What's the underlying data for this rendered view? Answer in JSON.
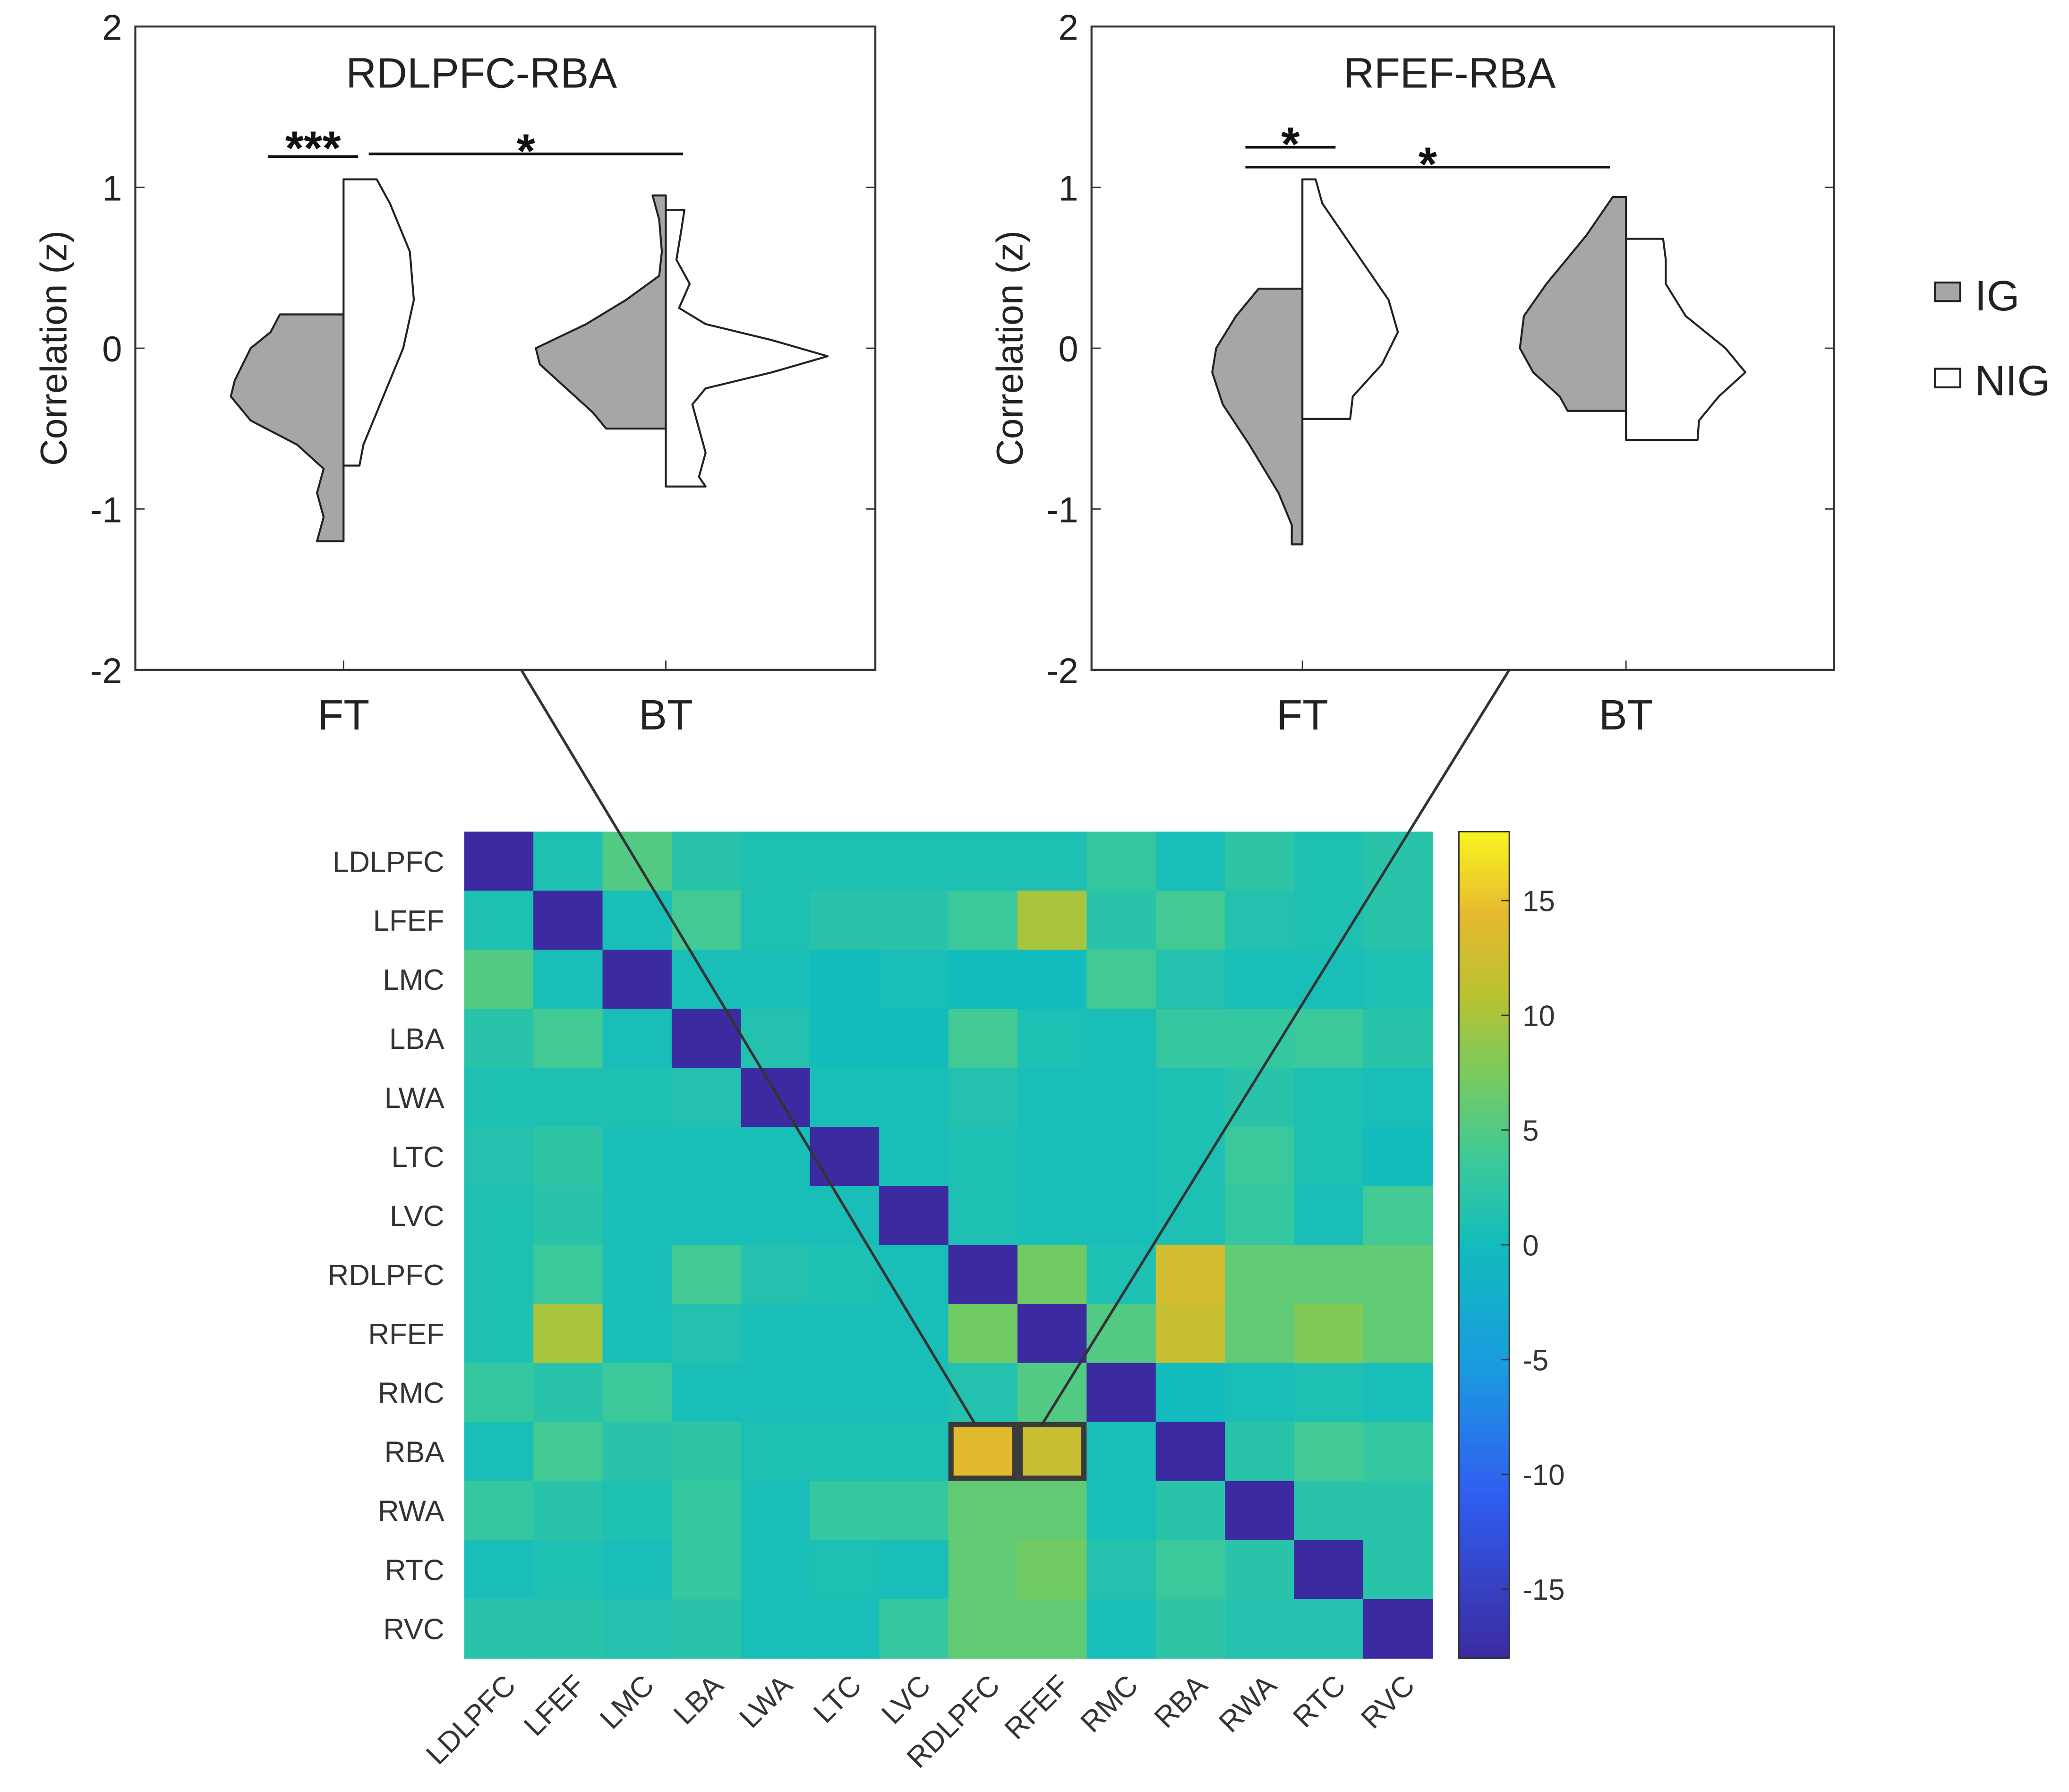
{
  "chart_data": [
    {
      "type": "violin",
      "title": "RDLPFC-RBA",
      "ylabel": "Correlation (z)",
      "ylim": [
        -2,
        2
      ],
      "yticks": [
        "2",
        "1",
        "0",
        "-1",
        "-2"
      ],
      "categories": [
        "FT",
        "BT"
      ],
      "significance": [
        {
          "label": "***",
          "between": "FT IG vs FT NIG"
        },
        {
          "label": "*",
          "between": "FT NIG vs BT NIG"
        }
      ],
      "series": [
        {
          "name": "IG",
          "side": "left",
          "violins": [
            [
              [
                0.21,
                0.48
              ],
              [
                0.1,
                0.55
              ],
              [
                0,
                0.7
              ],
              [
                -0.2,
                0.82
              ],
              [
                -0.3,
                0.85
              ],
              [
                -0.45,
                0.7
              ],
              [
                -0.6,
                0.35
              ],
              [
                -0.75,
                0.15
              ],
              [
                -0.9,
                0.2
              ],
              [
                -1.05,
                0.15
              ],
              [
                -1.2,
                0.2
              ]
            ],
            [
              [
                0.95,
                0.1
              ],
              [
                0.8,
                0.05
              ],
              [
                0.6,
                0.03
              ],
              [
                0.45,
                0.05
              ],
              [
                0.3,
                0.3
              ],
              [
                0.15,
                0.6
              ],
              [
                0,
                0.98
              ],
              [
                -0.1,
                0.95
              ],
              [
                -0.25,
                0.75
              ],
              [
                -0.4,
                0.55
              ],
              [
                -0.5,
                0.45
              ]
            ]
          ]
        },
        {
          "name": "NIG",
          "side": "right",
          "violins": [
            [
              [
                1.05,
                0.25
              ],
              [
                0.9,
                0.35
              ],
              [
                0.6,
                0.5
              ],
              [
                0.3,
                0.53
              ],
              [
                0,
                0.45
              ],
              [
                -0.3,
                0.3
              ],
              [
                -0.6,
                0.15
              ],
              [
                -0.73,
                0.12
              ]
            ],
            [
              [
                0.86,
                0.14
              ],
              [
                0.75,
                0.12
              ],
              [
                0.55,
                0.08
              ],
              [
                0.4,
                0.18
              ],
              [
                0.25,
                0.1
              ],
              [
                0.15,
                0.3
              ],
              [
                0.05,
                0.8
              ],
              [
                -0.05,
                1.22
              ],
              [
                -0.15,
                0.8
              ],
              [
                -0.25,
                0.3
              ],
              [
                -0.35,
                0.2
              ],
              [
                -0.5,
                0.25
              ],
              [
                -0.65,
                0.3
              ],
              [
                -0.8,
                0.25
              ],
              [
                -0.86,
                0.3
              ]
            ]
          ]
        }
      ]
    },
    {
      "type": "violin",
      "title": "RFEF-RBA",
      "ylabel": "Correlation (z)",
      "ylim": [
        -2,
        2
      ],
      "yticks": [
        "2",
        "1",
        "0",
        "-1",
        "-2"
      ],
      "categories": [
        "FT",
        "BT"
      ],
      "significance": [
        {
          "label": "*",
          "between": "FT IG vs FT NIG"
        },
        {
          "label": "*",
          "between": "FT IG vs BT IG"
        }
      ],
      "series": [
        {
          "name": "IG",
          "side": "left",
          "violins": [
            [
              [
                0.37,
                0.33
              ],
              [
                0.2,
                0.5
              ],
              [
                0,
                0.65
              ],
              [
                -0.15,
                0.68
              ],
              [
                -0.35,
                0.6
              ],
              [
                -0.6,
                0.4
              ],
              [
                -0.9,
                0.18
              ],
              [
                -1.1,
                0.08
              ],
              [
                -1.22,
                0.08
              ]
            ],
            [
              [
                0.94,
                0.1
              ],
              [
                0.7,
                0.3
              ],
              [
                0.4,
                0.6
              ],
              [
                0.2,
                0.77
              ],
              [
                0,
                0.8
              ],
              [
                -0.15,
                0.7
              ],
              [
                -0.3,
                0.5
              ],
              [
                -0.39,
                0.44
              ]
            ]
          ]
        },
        {
          "name": "NIG",
          "side": "right",
          "violins": [
            [
              [
                1.05,
                0.1
              ],
              [
                0.9,
                0.15
              ],
              [
                0.6,
                0.4
              ],
              [
                0.3,
                0.65
              ],
              [
                0.1,
                0.72
              ],
              [
                -0.1,
                0.6
              ],
              [
                -0.3,
                0.38
              ],
              [
                -0.44,
                0.36
              ]
            ],
            [
              [
                0.68,
                0.28
              ],
              [
                0.55,
                0.3
              ],
              [
                0.4,
                0.3
              ],
              [
                0.2,
                0.45
              ],
              [
                0,
                0.75
              ],
              [
                -0.15,
                0.9
              ],
              [
                -0.3,
                0.7
              ],
              [
                -0.45,
                0.55
              ],
              [
                -0.57,
                0.54
              ]
            ]
          ]
        }
      ]
    },
    {
      "type": "heatmap",
      "labels": [
        "LDLPFC",
        "LFEF",
        "LMC",
        "LBA",
        "LWA",
        "LTC",
        "LVC",
        "RDLPFC",
        "RFEF",
        "RMC",
        "RBA",
        "RWA",
        "RTC",
        "RVC"
      ],
      "clim": [
        -18,
        18
      ],
      "colorbar_ticks": [
        15,
        10,
        5,
        0,
        -5,
        -10,
        -15
      ],
      "highlighted": [
        [
          "RBA",
          "RDLPFC"
        ],
        [
          "RBA",
          "RFEF"
        ]
      ],
      "values": [
        [
          -18,
          1,
          5,
          2,
          1,
          1,
          1,
          1,
          1,
          3,
          0.5,
          2.5,
          1,
          2
        ],
        [
          1,
          -18,
          0.5,
          4,
          1,
          2,
          2,
          3.5,
          10,
          2,
          4,
          1.5,
          1,
          2
        ],
        [
          5,
          0.5,
          -18,
          0.5,
          0.5,
          0,
          0.5,
          0,
          0,
          4,
          1.5,
          0.5,
          0.5,
          1
        ],
        [
          2,
          4,
          0.5,
          -18,
          1.5,
          0,
          0,
          4,
          1,
          0.5,
          3,
          3,
          3.5,
          2
        ],
        [
          1,
          1,
          1,
          1.5,
          -18,
          0.5,
          0.5,
          1.5,
          0.5,
          0.5,
          1,
          2,
          1,
          0.5
        ],
        [
          1.5,
          2.5,
          0.5,
          0.5,
          0.5,
          -18,
          0.5,
          1,
          0.5,
          0.5,
          1,
          3.5,
          1,
          0
        ],
        [
          1,
          2,
          0.5,
          0.5,
          0.5,
          0.5,
          -18,
          1,
          0.5,
          0.5,
          1,
          3,
          0.5,
          4
        ],
        [
          1,
          3.5,
          0.5,
          4,
          1.5,
          1,
          0.5,
          -18,
          7,
          1,
          13,
          6,
          6,
          6
        ],
        [
          1,
          10,
          0.5,
          1.5,
          0.5,
          0.5,
          0.5,
          7,
          -18,
          5,
          12,
          6,
          8,
          6
        ],
        [
          3,
          2,
          3.5,
          0.5,
          0.5,
          0.5,
          0.5,
          1.5,
          5,
          -18,
          0,
          0.5,
          1,
          0.5
        ],
        [
          0.5,
          4,
          2,
          2.5,
          1,
          1,
          1,
          14,
          12,
          0.5,
          -18,
          2,
          4,
          3
        ],
        [
          3,
          2,
          1,
          3,
          0.5,
          3,
          3,
          6,
          6,
          0.5,
          2,
          -18,
          2,
          2
        ],
        [
          0.5,
          1,
          0.5,
          3,
          0.5,
          1,
          0.5,
          6,
          7,
          1.5,
          3.5,
          2,
          -18,
          2
        ],
        [
          2,
          2,
          1.5,
          2,
          0.5,
          0.5,
          3,
          6,
          6,
          0.5,
          2.5,
          1.5,
          1.5,
          -18
        ]
      ]
    }
  ],
  "legend": {
    "items": [
      {
        "label": "IG",
        "color": "#a6a6a6"
      },
      {
        "label": "NIG",
        "color": "#ffffff"
      }
    ]
  }
}
